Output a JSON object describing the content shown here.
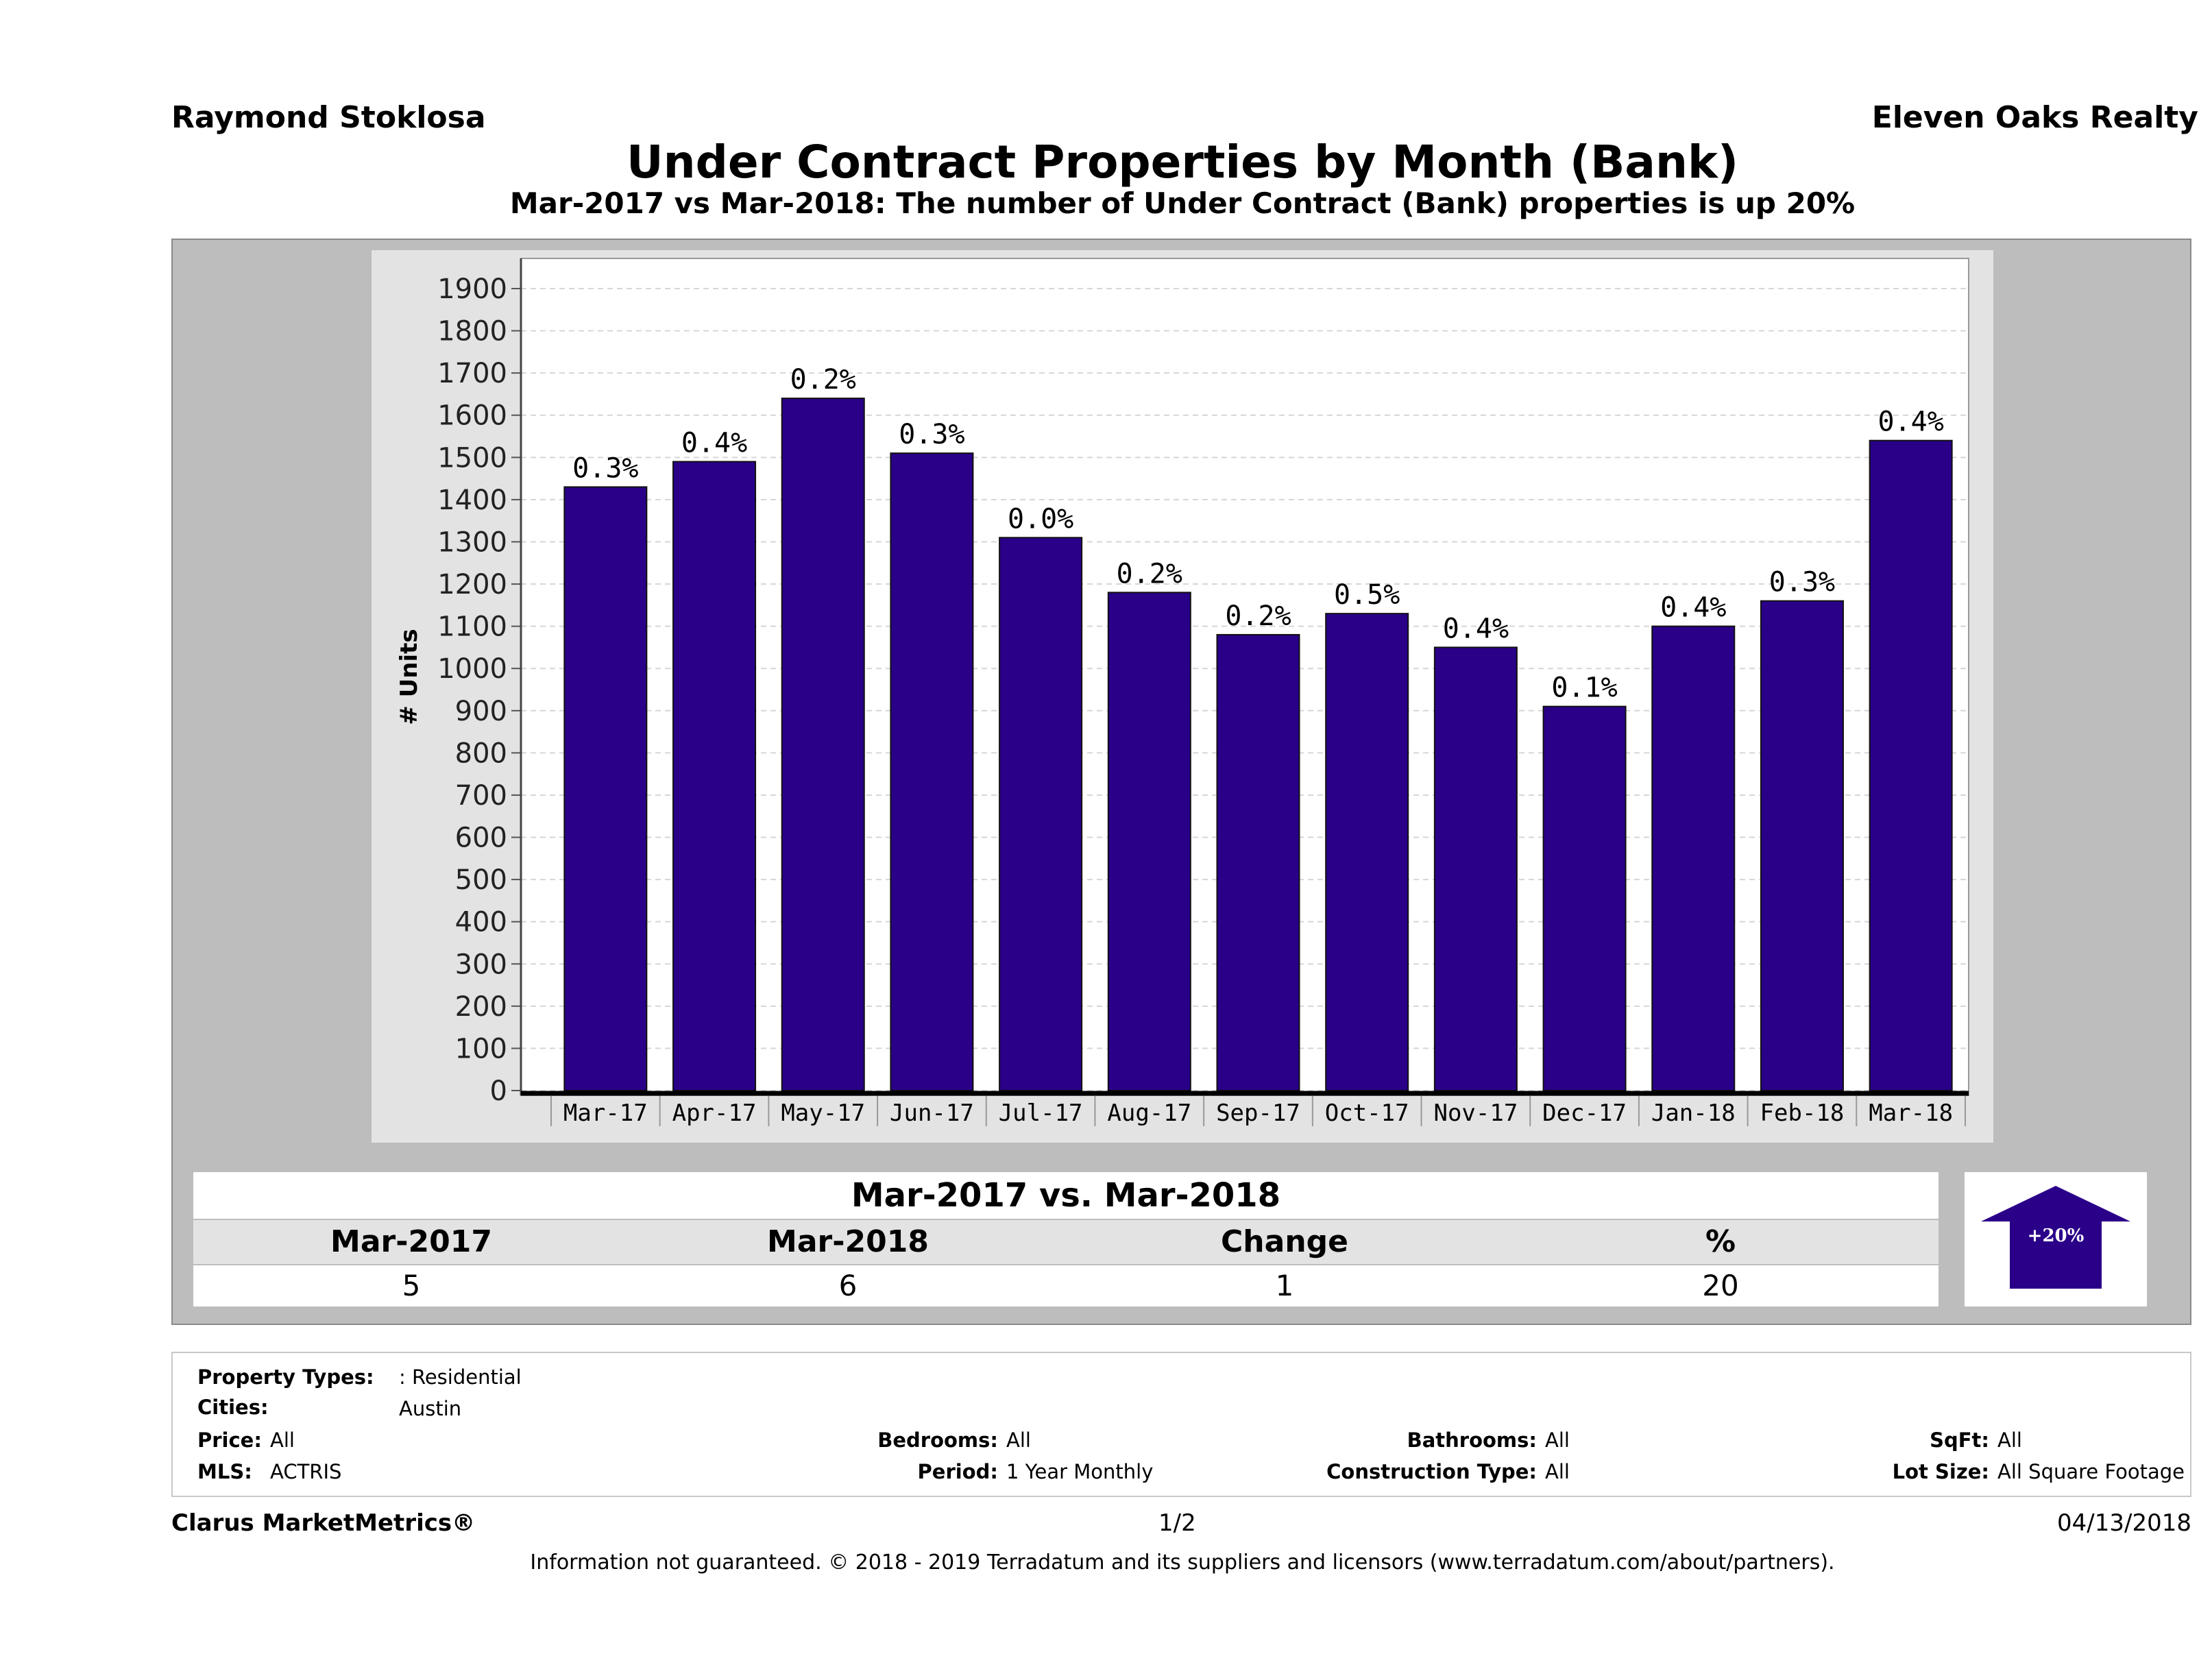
{
  "header": {
    "agent": "Raymond Stoklosa",
    "brokerage": "Eleven Oaks Realty",
    "title": "Under Contract Properties by Month (Bank)",
    "subtitle": "Mar-2017 vs Mar-2018: The number of Under Contract (Bank)  properties is up 20%"
  },
  "chart_data": {
    "type": "bar",
    "categories": [
      "Mar-17",
      "Apr-17",
      "May-17",
      "Jun-17",
      "Jul-17",
      "Aug-17",
      "Sep-17",
      "Oct-17",
      "Nov-17",
      "Dec-17",
      "Jan-18",
      "Feb-18",
      "Mar-18"
    ],
    "values": [
      1430,
      1490,
      1640,
      1510,
      1310,
      1180,
      1080,
      1130,
      1050,
      910,
      1100,
      1160,
      1540
    ],
    "data_labels": [
      "0.3%",
      "0.4%",
      "0.2%",
      "0.3%",
      "0.0%",
      "0.2%",
      "0.2%",
      "0.5%",
      "0.4%",
      "0.1%",
      "0.4%",
      "0.3%",
      "0.4%"
    ],
    "ylabel": "# Units",
    "ylim": [
      0,
      1900
    ],
    "yticks": [
      0,
      100,
      200,
      300,
      400,
      500,
      600,
      700,
      800,
      900,
      1000,
      1100,
      1200,
      1300,
      1400,
      1500,
      1600,
      1700,
      1800,
      1900
    ],
    "bar_color": "#2a0089",
    "grid": true
  },
  "comparison": {
    "title": "Mar-2017 vs. Mar-2018",
    "headers": [
      "Mar-2017",
      "Mar-2018",
      "Change",
      "%"
    ],
    "values": [
      "5",
      "6",
      "1",
      "20"
    ],
    "badge": "+20%",
    "arrow_color": "#2a0089"
  },
  "filters": {
    "property_types_label": "Property Types:",
    "property_types_value": ": Residential",
    "cities_label": "Cities:",
    "cities_value": "Austin",
    "price_label": "Price:",
    "price_value": "All",
    "mls_label": "MLS:",
    "mls_value": "ACTRIS",
    "bedrooms_label": "Bedrooms:",
    "bedrooms_value": "All",
    "period_label": "Period:",
    "period_value": "1 Year Monthly",
    "bathrooms_label": "Bathrooms:",
    "bathrooms_value": "All",
    "construction_label": "Construction Type:",
    "construction_value": "All",
    "sqft_label": "SqFt:",
    "sqft_value": "All",
    "lotsize_label": "Lot Size:",
    "lotsize_value": "All Square Footage"
  },
  "footer": {
    "brand": "Clarus MarketMetrics®",
    "page": "1/2",
    "date": "04/13/2018",
    "disclaimer": "Information not guaranteed. © 2018 - 2019 Terradatum and its suppliers and licensors (www.terradatum.com/about/partners)."
  }
}
